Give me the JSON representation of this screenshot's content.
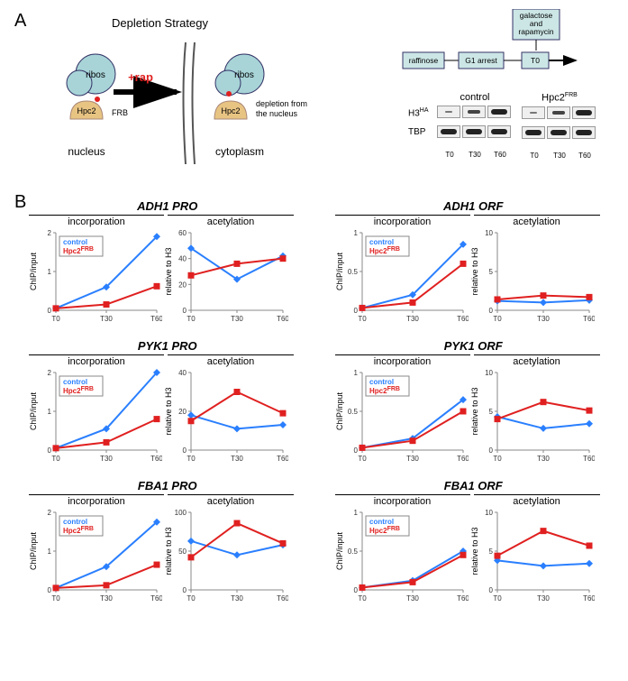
{
  "palette": {
    "control": "#2a7fff",
    "hpc2": "#e02020",
    "box_fill": "#cce6e6",
    "box_stroke": "#334466",
    "axis": "#888888",
    "bg": "#ffffff"
  },
  "panelA": {
    "label": "A",
    "title": "Depletion Strategy",
    "diagram": {
      "nucleus_label": "nucleus",
      "cytoplasm_label": "cytoplasm",
      "rap_label": "+rap",
      "ribos_label": "ribos",
      "hpc2_label": "Hpc2",
      "frb_label": "FRB",
      "depletion_note1": "depletion from",
      "depletion_note2": "the nucleus"
    },
    "flow": {
      "box_fill": "#cce6e6",
      "box_stroke": "#334466",
      "nodes": [
        "raffinose",
        "G1 arrest",
        "T0"
      ],
      "top_box_lines": [
        "galactose",
        "and",
        "rapamycin"
      ]
    },
    "blots": {
      "columns": [
        {
          "title": "control",
          "rows": [
            {
              "label": "H3",
              "super": "HA",
              "bands": [
                "faint",
                "mid",
                "dark"
              ]
            },
            {
              "label": "TBP",
              "bands": [
                "dark",
                "dark",
                "dark"
              ]
            }
          ],
          "timepoints": [
            "T0",
            "T30",
            "T60"
          ]
        },
        {
          "title": "Hpc2",
          "title_super": "FRB",
          "rows": [
            {
              "label": "",
              "bands": [
                "faint",
                "mid",
                "dark"
              ]
            },
            {
              "label": "",
              "bands": [
                "dark",
                "dark",
                "dark"
              ]
            }
          ],
          "timepoints": [
            "T0",
            "T30",
            "T60"
          ]
        }
      ]
    }
  },
  "panelB": {
    "label": "B",
    "x_ticks": [
      "T0",
      "T30",
      "T60"
    ],
    "legend": {
      "control": "control",
      "hpc2": "Hpc2",
      "hpc2_super": "FRB"
    },
    "chart_style": {
      "width_incorp": 150,
      "width_acet": 140,
      "height": 110,
      "line_width": 2,
      "marker_size_c": 4,
      "marker_size_h": 4,
      "tick_fontsize": 8,
      "ytitle_fontsize": 9
    },
    "loci": [
      {
        "title": "ADH1 PRO",
        "incorporation": {
          "ytitle": "ChIP/input",
          "ylim": [
            0,
            2
          ],
          "ytick_step": 1,
          "control": [
            0.05,
            0.6,
            1.9
          ],
          "hpc2": [
            0.05,
            0.15,
            0.62
          ]
        },
        "acetylation": {
          "ytitle": "relative to H3",
          "ylim": [
            0,
            60
          ],
          "ytick_step": 20,
          "control": [
            48,
            24,
            42
          ],
          "hpc2": [
            27,
            36,
            40
          ]
        }
      },
      {
        "title": "ADH1 ORF",
        "incorporation": {
          "ytitle": "ChIP/input",
          "ylim": [
            0,
            1
          ],
          "ytick_step": 0.5,
          "control": [
            0.03,
            0.2,
            0.85
          ],
          "hpc2": [
            0.03,
            0.1,
            0.6
          ]
        },
        "acetylation": {
          "ytitle": "relative to H3",
          "ylim": [
            0,
            10
          ],
          "ytick_step": 5,
          "control": [
            1.2,
            1.0,
            1.3
          ],
          "hpc2": [
            1.4,
            1.9,
            1.7
          ]
        }
      },
      {
        "title": "PYK1 PRO",
        "incorporation": {
          "ytitle": "ChIP/input",
          "ylim": [
            0,
            2
          ],
          "ytick_step": 1,
          "control": [
            0.05,
            0.55,
            2.0
          ],
          "hpc2": [
            0.05,
            0.2,
            0.8
          ]
        },
        "acetylation": {
          "ytitle": "relative to H3",
          "ylim": [
            0,
            40
          ],
          "ytick_step": 20,
          "control": [
            18,
            11,
            13
          ],
          "hpc2": [
            15,
            30,
            19
          ]
        }
      },
      {
        "title": "PYK1 ORF",
        "incorporation": {
          "ytitle": "ChIP/input",
          "ylim": [
            0,
            1
          ],
          "ytick_step": 0.5,
          "control": [
            0.03,
            0.15,
            0.65
          ],
          "hpc2": [
            0.03,
            0.12,
            0.5
          ]
        },
        "acetylation": {
          "ytitle": "relative to H3",
          "ylim": [
            0,
            10
          ],
          "ytick_step": 5,
          "control": [
            4.3,
            2.8,
            3.4
          ],
          "hpc2": [
            4.0,
            6.2,
            5.1
          ]
        }
      },
      {
        "title": "FBA1 PRO",
        "incorporation": {
          "ytitle": "ChIP/input",
          "ylim": [
            0,
            2
          ],
          "ytick_step": 1,
          "control": [
            0.05,
            0.6,
            1.75
          ],
          "hpc2": [
            0.05,
            0.12,
            0.65
          ]
        },
        "acetylation": {
          "ytitle": "relative to H3",
          "ylim": [
            0,
            100
          ],
          "ytick_step": 50,
          "control": [
            63,
            45,
            58
          ],
          "hpc2": [
            42,
            86,
            60
          ]
        }
      },
      {
        "title": "FBA1 ORF",
        "incorporation": {
          "ytitle": "ChIP/input",
          "ylim": [
            0,
            1
          ],
          "ytick_step": 0.5,
          "control": [
            0.03,
            0.12,
            0.5
          ],
          "hpc2": [
            0.03,
            0.1,
            0.45
          ]
        },
        "acetylation": {
          "ytitle": "relative to H3",
          "ylim": [
            0,
            10
          ],
          "ytick_step": 5,
          "control": [
            3.8,
            3.1,
            3.4
          ],
          "hpc2": [
            4.4,
            7.6,
            5.7
          ]
        }
      }
    ],
    "pair_headers": {
      "left": "incorporation",
      "right": "acetylation"
    }
  }
}
